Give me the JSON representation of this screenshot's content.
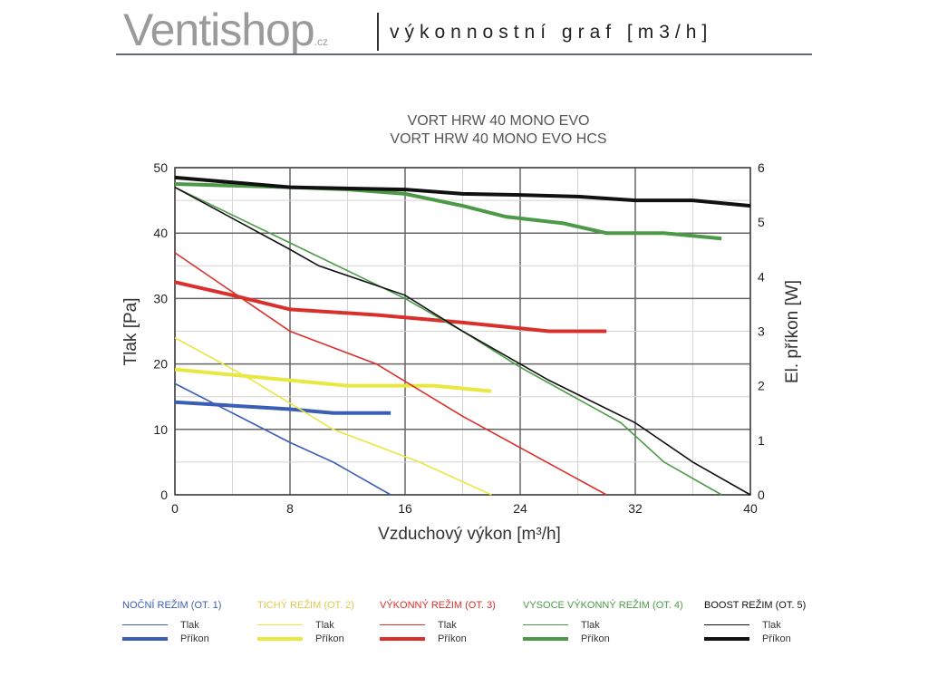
{
  "header": {
    "logo": "Ventishop",
    "logo_suffix": ".cz",
    "subtitle": "výkonnostní graf [m3/h]"
  },
  "chart_data": {
    "type": "line",
    "title": [
      "VORT HRW 40 MONO EVO",
      "VORT HRW 40 MONO EVO HCS"
    ],
    "xlabel": "Vzduchový výkon [m³/h]",
    "ylabel": "Tlak [Pa]",
    "y2label": "El. příkon [W]",
    "xlim": [
      0,
      40
    ],
    "ylim": [
      0,
      50
    ],
    "y2lim": [
      0,
      6
    ],
    "xticks": [
      0,
      8,
      16,
      24,
      32,
      40
    ],
    "yticks": [
      0,
      10,
      20,
      30,
      40,
      50
    ],
    "y2ticks": [
      0,
      1,
      2,
      3,
      4,
      5,
      6
    ],
    "grid": true,
    "series": [
      {
        "mode": "NOČNÍ REŽIM (OT. 1)",
        "color": "#3a5db5",
        "tlak": [
          [
            0,
            17
          ],
          [
            4,
            12.5
          ],
          [
            8,
            8
          ],
          [
            11,
            5
          ],
          [
            15,
            0
          ]
        ],
        "prikon": [
          [
            0,
            1.7
          ],
          [
            8,
            1.57
          ],
          [
            11,
            1.5
          ],
          [
            15,
            1.5
          ]
        ]
      },
      {
        "mode": "TICHÝ REŽIM (OT. 2)",
        "color": "#e8e840",
        "tlak": [
          [
            0,
            24
          ],
          [
            5,
            18
          ],
          [
            8,
            14
          ],
          [
            11,
            10
          ],
          [
            17,
            5
          ],
          [
            22,
            0
          ]
        ],
        "prikon": [
          [
            0,
            2.3
          ],
          [
            8,
            2.1
          ],
          [
            12,
            2.0
          ],
          [
            18,
            2.0
          ],
          [
            22,
            1.9
          ]
        ]
      },
      {
        "mode": "VÝKONNÝ REŽIM (OT. 3)",
        "color": "#d9302c",
        "tlak": [
          [
            0,
            37
          ],
          [
            8,
            25
          ],
          [
            14,
            20
          ],
          [
            20,
            12
          ],
          [
            30,
            0
          ]
        ],
        "prikon": [
          [
            0,
            3.9
          ],
          [
            4,
            3.66
          ],
          [
            8,
            3.4
          ],
          [
            14,
            3.3
          ],
          [
            20,
            3.16
          ],
          [
            26,
            3.0
          ],
          [
            30,
            3.0
          ]
        ]
      },
      {
        "mode": "VYSOCE VÝKONNÝ REŽIM (OT. 4)",
        "color": "#4c9a48",
        "tlak": [
          [
            0,
            47
          ],
          [
            8,
            38.5
          ],
          [
            16,
            30
          ],
          [
            20,
            25
          ],
          [
            24,
            19.5
          ],
          [
            31,
            11
          ],
          [
            34,
            5
          ],
          [
            38,
            0
          ]
        ],
        "prikon": [
          [
            0,
            5.7
          ],
          [
            8,
            5.64
          ],
          [
            12,
            5.6
          ],
          [
            16,
            5.52
          ],
          [
            20,
            5.3
          ],
          [
            23,
            5.1
          ],
          [
            27,
            4.98
          ],
          [
            30,
            4.8
          ],
          [
            34,
            4.8
          ],
          [
            38,
            4.7
          ]
        ]
      },
      {
        "mode": "BOOST REŽIM (OT. 5)",
        "color": "#111111",
        "tlak": [
          [
            0,
            47
          ],
          [
            8,
            37.5
          ],
          [
            10,
            35
          ],
          [
            16,
            30.5
          ],
          [
            20,
            25
          ],
          [
            26,
            17.5
          ],
          [
            32,
            11
          ],
          [
            36,
            5
          ],
          [
            40,
            0
          ]
        ],
        "prikon": [
          [
            0,
            5.82
          ],
          [
            8,
            5.64
          ],
          [
            16,
            5.6
          ],
          [
            20,
            5.52
          ],
          [
            24,
            5.5
          ],
          [
            28,
            5.47
          ],
          [
            32,
            5.4
          ],
          [
            36,
            5.4
          ],
          [
            40,
            5.3
          ]
        ]
      }
    ],
    "legend": {
      "placement": "bottom",
      "tlak_label": "Tlak",
      "prikon_label": "Příkon"
    }
  }
}
